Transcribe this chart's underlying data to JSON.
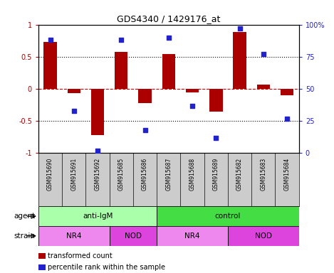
{
  "title": "GDS4340 / 1429176_at",
  "samples": [
    "GSM915690",
    "GSM915691",
    "GSM915692",
    "GSM915685",
    "GSM915686",
    "GSM915687",
    "GSM915688",
    "GSM915689",
    "GSM915682",
    "GSM915683",
    "GSM915684"
  ],
  "bar_values": [
    0.73,
    -0.07,
    -0.72,
    0.58,
    -0.22,
    0.54,
    -0.05,
    -0.35,
    0.88,
    0.07,
    -0.1
  ],
  "dot_values": [
    88,
    33,
    2,
    88,
    18,
    90,
    37,
    12,
    97,
    77,
    27
  ],
  "bar_color": "#aa0000",
  "dot_color": "#2222cc",
  "ylim_left": [
    -1,
    1
  ],
  "ylim_right": [
    0,
    100
  ],
  "yticks_left": [
    -1,
    -0.5,
    0,
    0.5,
    1
  ],
  "ytick_labels_left": [
    "-1",
    "-0.5",
    "0",
    "0.5",
    "1"
  ],
  "yticks_right": [
    0,
    25,
    50,
    75,
    100
  ],
  "ytick_labels_right": [
    "0",
    "25",
    "50",
    "75",
    "100%"
  ],
  "hlines_dotted": [
    0.5,
    -0.5
  ],
  "hline_dashed": 0.0,
  "agent_labels": [
    {
      "text": "anti-IgM",
      "start": 0,
      "end": 5,
      "color": "#aaffaa"
    },
    {
      "text": "control",
      "start": 5,
      "end": 11,
      "color": "#44dd44"
    }
  ],
  "strain_labels": [
    {
      "text": "NR4",
      "start": 0,
      "end": 3,
      "color": "#ee88ee"
    },
    {
      "text": "NOD",
      "start": 3,
      "end": 5,
      "color": "#dd44dd"
    },
    {
      "text": "NR4",
      "start": 5,
      "end": 8,
      "color": "#ee88ee"
    },
    {
      "text": "NOD",
      "start": 8,
      "end": 11,
      "color": "#dd44dd"
    }
  ],
  "legend_items": [
    {
      "label": "transformed count",
      "color": "#aa0000"
    },
    {
      "label": "percentile rank within the sample",
      "color": "#2222cc"
    }
  ],
  "sample_bg": "#cccccc",
  "background_color": "#ffffff"
}
